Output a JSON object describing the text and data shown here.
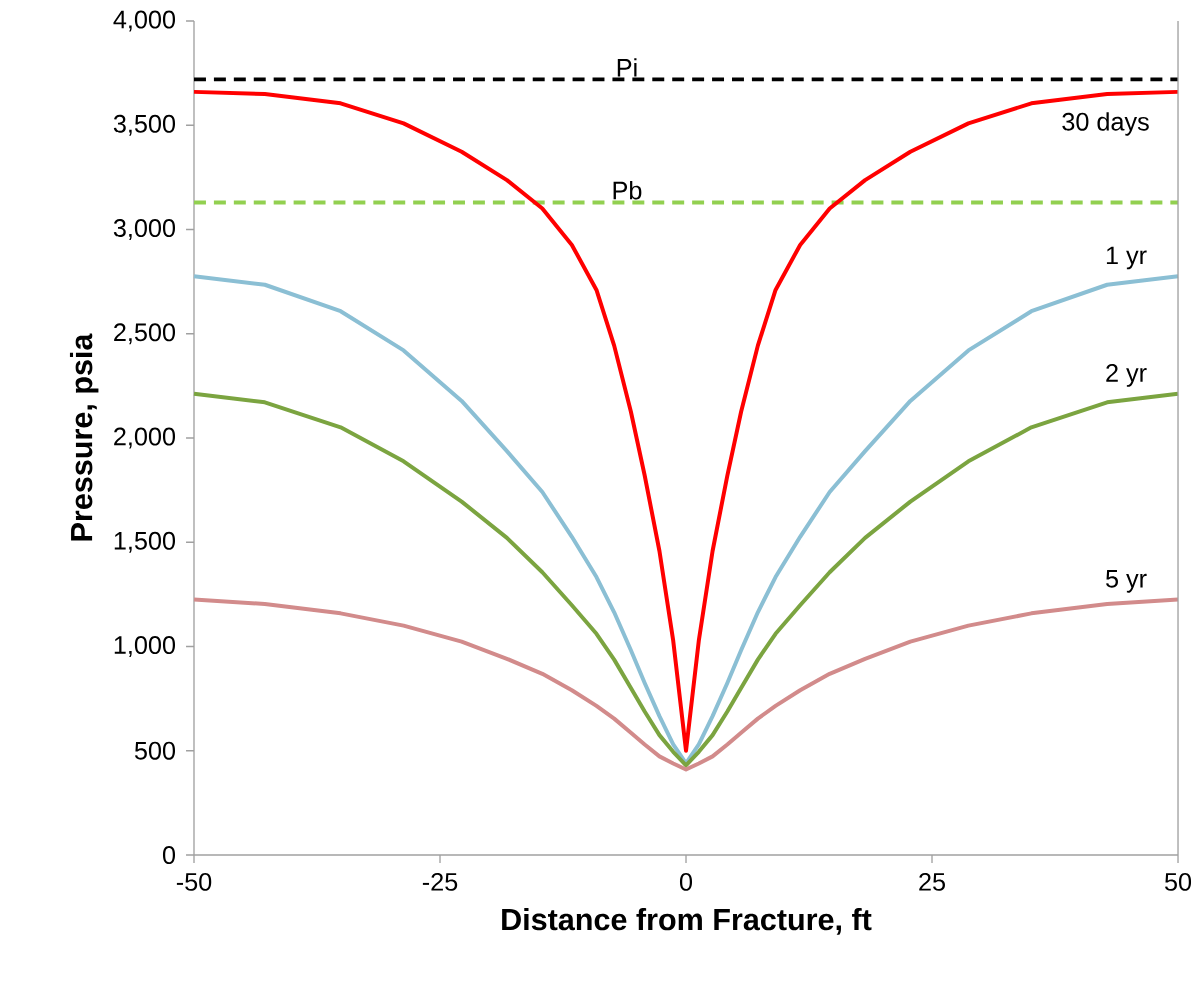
{
  "chart_data": {
    "type": "line",
    "xlabel": "Distance from Fracture, ft",
    "ylabel": "Pressure, psia",
    "xlim": [
      -50,
      50
    ],
    "xticks": [
      -50,
      -25,
      0,
      25,
      50
    ],
    "ylim": [
      0,
      4000
    ],
    "yticks": [
      {
        "value": 0,
        "label": "0"
      },
      {
        "value": 500,
        "label": "500"
      },
      {
        "value": 1000,
        "label": "1,000"
      },
      {
        "value": 1500,
        "label": "1,500"
      },
      {
        "value": 2000,
        "label": "2,000"
      },
      {
        "value": 2500,
        "label": "2,500"
      },
      {
        "value": 3000,
        "label": "3,000"
      },
      {
        "value": 3500,
        "label": "3,500"
      },
      {
        "value": 4000,
        "label": "4,000"
      }
    ],
    "x": [
      -50,
      -42.8,
      -35.1,
      -28.7,
      -22.8,
      -18.2,
      -14.6,
      -11.6,
      -9.1,
      -7.3,
      -5.6,
      -4.2,
      -2.7,
      -1.3,
      0,
      1.3,
      2.7,
      4.2,
      5.6,
      7.3,
      9.1,
      11.6,
      14.6,
      18.2,
      22.8,
      28.7,
      35.1,
      42.8,
      50
    ],
    "line_style": "solid",
    "series": [
      {
        "name": "30 days",
        "color": "#ff0000",
        "values": [
          3660,
          3650,
          3605,
          3509,
          3373,
          3237,
          3101,
          2926,
          2710,
          2443,
          2126,
          1820,
          1458,
          1028,
          500,
          1028,
          1458,
          1820,
          2126,
          2443,
          2710,
          2926,
          3101,
          3237,
          3373,
          3509,
          3605,
          3650,
          3660
        ]
      },
      {
        "name": "1 yr",
        "color": "#8bbfd4",
        "values": [
          2776,
          2735,
          2608,
          2420,
          2178,
          1937,
          1741,
          1526,
          1333,
          1164,
          982,
          825,
          666,
          530,
          440,
          530,
          666,
          825,
          982,
          1164,
          1333,
          1526,
          1741,
          1937,
          2178,
          2420,
          2608,
          2735,
          2776
        ]
      },
      {
        "name": "2 yr",
        "color": "#7ba440",
        "values": [
          2212,
          2171,
          2051,
          1888,
          1695,
          1521,
          1356,
          1198,
          1061,
          937,
          801,
          688,
          575,
          495,
          430,
          495,
          575,
          688,
          801,
          937,
          1061,
          1198,
          1356,
          1521,
          1695,
          1888,
          2051,
          2171,
          2212
        ]
      },
      {
        "name": "5 yr",
        "color": "#d28b8b",
        "values": [
          1225,
          1204,
          1159,
          1100,
          1023,
          941,
          869,
          790,
          715,
          654,
          586,
          530,
          473,
          439,
          410,
          439,
          473,
          530,
          586,
          654,
          715,
          790,
          869,
          941,
          1023,
          1100,
          1159,
          1204,
          1225
        ]
      }
    ],
    "ref_lines": [
      {
        "axis": "y",
        "value": 3720,
        "label": "Pi",
        "color": "#000000",
        "line_style": "dashed"
      },
      {
        "axis": "y",
        "value": 3130,
        "label": "Pb",
        "color": "#92d050",
        "line_style": "dashed"
      }
    ]
  }
}
